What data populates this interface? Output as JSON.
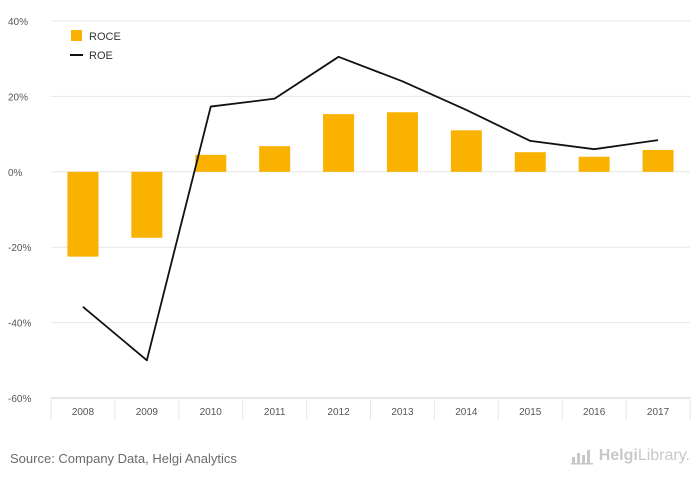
{
  "chart_data": {
    "type": "bar",
    "categories": [
      "2008",
      "2009",
      "2010",
      "2011",
      "2012",
      "2013",
      "2014",
      "2015",
      "2016",
      "2017"
    ],
    "series": [
      {
        "name": "ROCE",
        "kind": "bar",
        "color": "#F9B200",
        "values": [
          -22.5,
          -17.5,
          4.5,
          6.8,
          15.3,
          15.8,
          11.0,
          5.2,
          4.0,
          5.8
        ]
      },
      {
        "name": "ROE",
        "kind": "line",
        "color": "#111111",
        "values": [
          -35.8,
          -50.0,
          17.3,
          19.4,
          30.5,
          24.0,
          16.4,
          8.2,
          6.0,
          8.4
        ]
      }
    ],
    "ylim": [
      -60,
      40
    ],
    "yticks": [
      "40%",
      "20%",
      "0%",
      "-20%",
      "-40%",
      "-60%"
    ],
    "grid": true,
    "legend_position": "top-left"
  },
  "footer": {
    "source": "Source: Company Data, Helgi Analytics",
    "brand_prefix": "Helgi",
    "brand_suffix": "Library."
  },
  "colors": {
    "gridline": "#e6e6e6",
    "axis": "#cccccc",
    "logo": "#c8c8c8"
  },
  "icons": {
    "logo": "chart-logo-icon"
  }
}
